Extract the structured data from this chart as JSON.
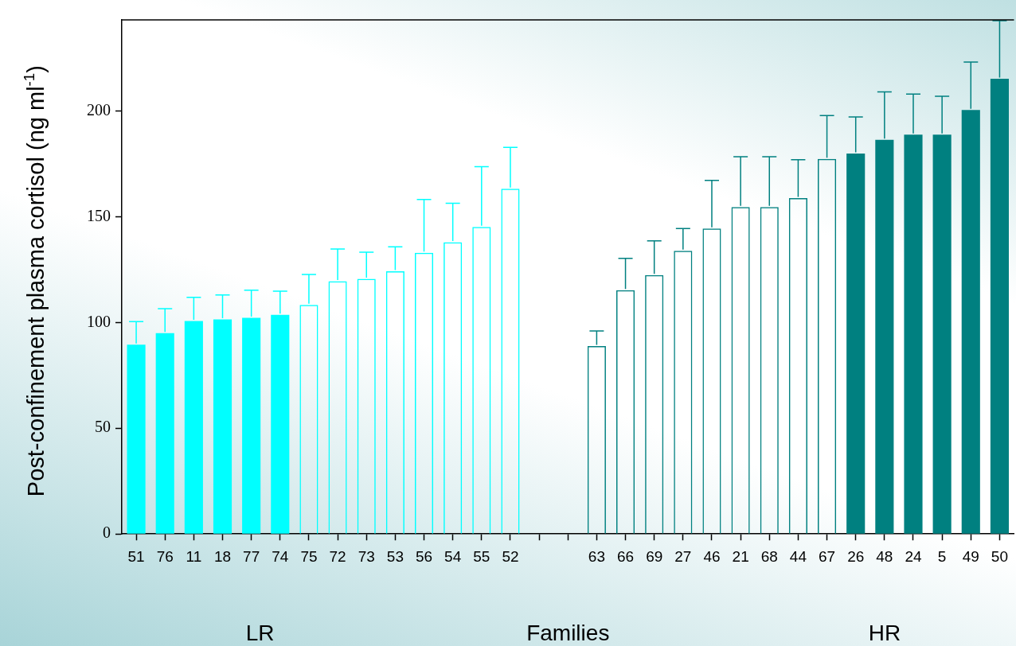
{
  "chart_data": {
    "type": "bar",
    "xlabel": "Families",
    "ylabel": "Post-confinement plasma cortisol (ng ml$^{-1}$)",
    "categories": [
      "51",
      "76",
      "11",
      "18",
      "77",
      "74",
      "75",
      "72",
      "73",
      "53",
      "56",
      "54",
      "55",
      "52",
      null,
      null,
      "63",
      "66",
      "69",
      "27",
      "46",
      "21",
      "68",
      "44",
      "67",
      "26",
      "48",
      "24",
      "5",
      "49",
      "50"
    ],
    "series": [
      {
        "color": "#00ffff",
        "values": [
          89.5,
          94.9,
          100.7,
          101.4,
          102.2,
          103.6,
          null,
          null,
          null,
          null,
          null,
          null,
          null,
          null,
          null,
          null,
          null,
          null,
          null,
          null,
          null,
          null,
          null,
          null,
          null,
          null,
          null,
          null,
          null,
          null,
          null
        ],
        "errors": [
          [
            89.5,
            100.4
          ],
          [
            94.9,
            106.5
          ],
          [
            100.7,
            111.9
          ],
          [
            101.4,
            113
          ],
          [
            102.2,
            115.2
          ],
          [
            103.6,
            114.8
          ],
          null,
          null,
          null,
          null,
          null,
          null,
          null,
          null,
          null,
          null,
          null,
          null,
          null,
          null,
          null,
          null,
          null,
          null,
          null,
          null,
          null,
          null,
          null,
          null,
          null
        ]
      },
      {
        "color": "#00ffff",
        "colors": [
          null,
          null,
          null,
          null,
          null,
          null,
          "#00ffff",
          "#00ffff",
          "#00ffff",
          "#00ffff",
          "#00ffff",
          "#00ffff",
          "#00ffff",
          "#00ffff",
          null,
          null,
          null,
          null,
          null,
          null,
          null,
          null,
          null,
          null,
          null,
          null,
          null,
          null,
          null,
          null,
          null
        ],
        "values": [
          null,
          null,
          null,
          null,
          null,
          null,
          108.3,
          119.5,
          120.6,
          124.2,
          132.9,
          137.9,
          145.1,
          163.2,
          null,
          null,
          null,
          null,
          null,
          null,
          null,
          null,
          null,
          null,
          null,
          null,
          null,
          null,
          null,
          null,
          null
        ],
        "errors": [
          null,
          null,
          null,
          null,
          null,
          null,
          [
            108.3,
            122.7
          ],
          [
            119.5,
            134.7
          ],
          [
            120.6,
            133.2
          ],
          [
            124.2,
            135.7
          ],
          [
            132.9,
            158.1
          ],
          [
            137.9,
            156.3
          ],
          [
            145.1,
            173.6
          ],
          [
            163.2,
            182.7
          ],
          null,
          null,
          null,
          null,
          null,
          null,
          null,
          null,
          null,
          null,
          null,
          null,
          null,
          null,
          null,
          null,
          null
        ]
      },
      {
        "color": "#008080",
        "colors": [
          null,
          null,
          null,
          null,
          null,
          null,
          null,
          null,
          null,
          null,
          null,
          null,
          null,
          null,
          null,
          null,
          "#008080",
          "#008080",
          "#008080",
          "#008080",
          "#008080",
          "#008080",
          "#008080",
          "#008080",
          "#008080",
          null,
          null,
          null,
          null,
          null,
          null
        ],
        "values": [
          null,
          null,
          null,
          null,
          null,
          null,
          null,
          null,
          null,
          null,
          null,
          null,
          null,
          null,
          null,
          null,
          88.8,
          115.2,
          122.4,
          133.9,
          144.4,
          154.5,
          154.5,
          158.8,
          177.3,
          null,
          null,
          null,
          null,
          null,
          null
        ],
        "errors": [
          null,
          null,
          null,
          null,
          null,
          null,
          null,
          null,
          null,
          null,
          null,
          null,
          null,
          null,
          null,
          null,
          [
            88.8,
            96
          ],
          [
            115.2,
            130.3
          ],
          [
            122.4,
            138.6
          ],
          [
            133.9,
            144.4
          ],
          [
            144.4,
            167.1
          ],
          [
            154.5,
            178.3
          ],
          [
            154.5,
            178.3
          ],
          [
            158.8,
            176.9
          ],
          [
            177.3,
            197.8
          ],
          null,
          null,
          null,
          null,
          null,
          null
        ]
      },
      {
        "color": "#008080",
        "values": [
          null,
          null,
          null,
          null,
          null,
          null,
          null,
          null,
          null,
          null,
          null,
          null,
          null,
          null,
          null,
          null,
          null,
          null,
          null,
          null,
          null,
          null,
          null,
          null,
          null,
          179.8,
          186.3,
          188.8,
          188.8,
          200.4,
          215.2
        ],
        "errors": [
          null,
          null,
          null,
          null,
          null,
          null,
          null,
          null,
          null,
          null,
          null,
          null,
          null,
          null,
          null,
          null,
          null,
          null,
          null,
          null,
          null,
          null,
          null,
          null,
          null,
          [
            179.8,
            197.1
          ],
          [
            186.3,
            209
          ],
          [
            188.8,
            207.9
          ],
          [
            188.8,
            206.9
          ],
          [
            200.4,
            223.1
          ],
          [
            215.2,
            242.6
          ]
        ]
      }
    ],
    "annotations": [
      "LR",
      "HR"
    ],
    "ylim": [
      0,
      243
    ],
    "yticks": [
      0,
      50,
      100,
      150,
      200
    ],
    "grid": false
  }
}
